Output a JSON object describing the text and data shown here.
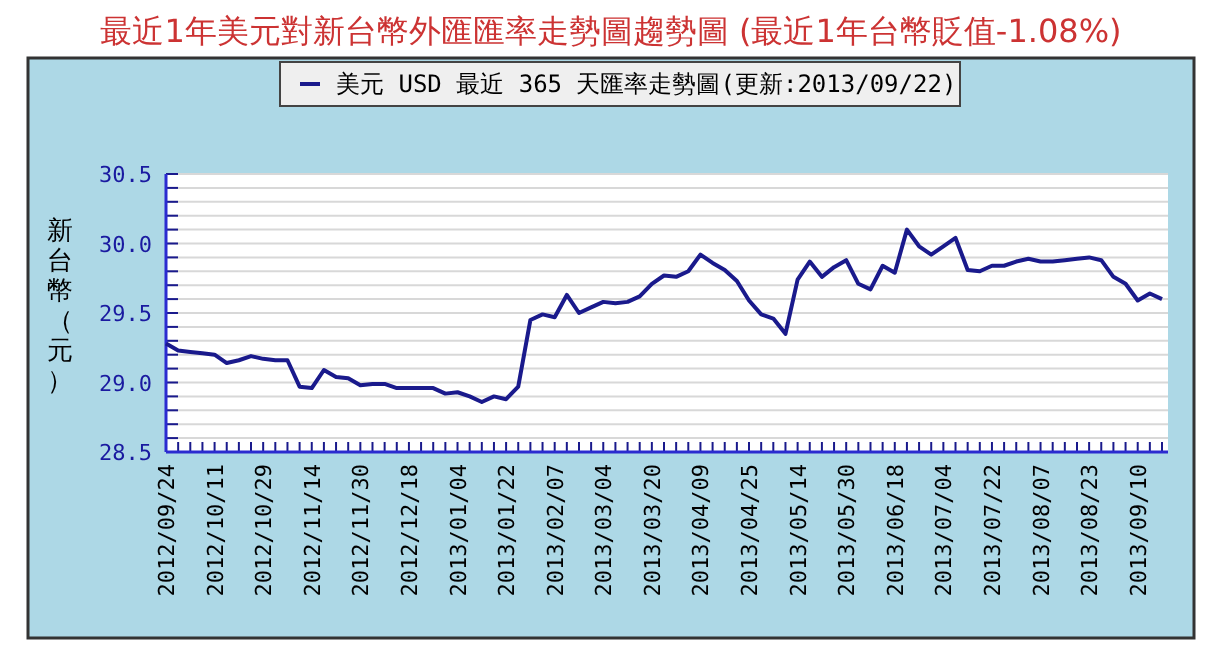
{
  "chart_data": {
    "type": "line",
    "title": "最近1年美元對新台幣外匯匯率走勢圖趨勢圖 (最近1年台幣貶值-1.08%)",
    "ylabel": "新台幣（元）",
    "categories": [
      "2012/09/24",
      null,
      null,
      null,
      "2012/10/11",
      null,
      null,
      null,
      "2012/10/29",
      null,
      null,
      null,
      "2012/11/14",
      null,
      null,
      null,
      "2012/11/30",
      null,
      null,
      null,
      "2012/12/18",
      null,
      null,
      null,
      "2013/01/04",
      null,
      null,
      null,
      "2013/01/22",
      null,
      null,
      null,
      "2013/02/07",
      null,
      null,
      null,
      "2013/03/04",
      null,
      null,
      null,
      "2013/03/20",
      null,
      null,
      null,
      "2013/04/09",
      null,
      null,
      null,
      "2013/04/25",
      null,
      null,
      null,
      "2013/05/14",
      null,
      null,
      null,
      "2013/05/30",
      null,
      null,
      null,
      "2013/06/18",
      null,
      null,
      null,
      "2013/07/04",
      null,
      null,
      null,
      "2013/07/22",
      null,
      null,
      null,
      "2013/08/07",
      null,
      null,
      null,
      "2013/08/23",
      null,
      null,
      null,
      "2013/09/10",
      null,
      null
    ],
    "series": [
      {
        "name": "美元 USD 最近 365 天匯率走勢圖(更新:2013/09/22)",
        "color": "#1a1a8c",
        "values": [
          29.28,
          29.23,
          29.22,
          29.21,
          29.2,
          29.14,
          29.16,
          29.19,
          29.17,
          29.16,
          29.16,
          28.97,
          28.96,
          29.09,
          29.04,
          29.03,
          28.98,
          28.99,
          28.99,
          28.96,
          28.96,
          28.96,
          28.96,
          28.92,
          28.93,
          28.9,
          28.86,
          28.9,
          28.88,
          28.97,
          29.45,
          29.49,
          29.47,
          29.63,
          29.5,
          29.54,
          29.58,
          29.57,
          29.58,
          29.62,
          29.71,
          29.77,
          29.76,
          29.8,
          29.92,
          29.86,
          29.81,
          29.73,
          29.59,
          29.49,
          29.46,
          29.35,
          29.74,
          29.87,
          29.76,
          29.83,
          29.88,
          29.71,
          29.67,
          29.84,
          29.79,
          30.1,
          29.98,
          29.92,
          29.98,
          30.04,
          29.81,
          29.8,
          29.84,
          29.84,
          29.87,
          29.89,
          29.87,
          29.87,
          29.88,
          29.89,
          29.9,
          29.88,
          29.76,
          29.71,
          29.59,
          29.64,
          29.6
        ]
      }
    ],
    "ylim": [
      28.5,
      30.5
    ],
    "yticks": [
      28.5,
      {
        "value": 28.6,
        "label": null
      },
      {
        "value": 28.7,
        "label": null
      },
      {
        "value": 28.8,
        "label": null
      },
      {
        "value": 28.9,
        "label": null
      },
      "29.0",
      {
        "value": 29.1,
        "label": null
      },
      {
        "value": 29.2,
        "label": null
      },
      {
        "value": 29.3,
        "label": null
      },
      {
        "value": 29.4,
        "label": null
      },
      29.5,
      {
        "value": 29.6,
        "label": null
      },
      {
        "value": 29.7,
        "label": null
      },
      {
        "value": 29.8,
        "label": null
      },
      {
        "value": 29.9,
        "label": null
      },
      {
        "value": 30.0,
        "label": "30.0"
      },
      {
        "value": 30.1,
        "label": null
      },
      {
        "value": 30.2,
        "label": null
      },
      {
        "value": 30.3,
        "label": null
      },
      {
        "value": 30.4,
        "label": null
      },
      30.5
    ],
    "grid": "y",
    "legend": "top"
  }
}
